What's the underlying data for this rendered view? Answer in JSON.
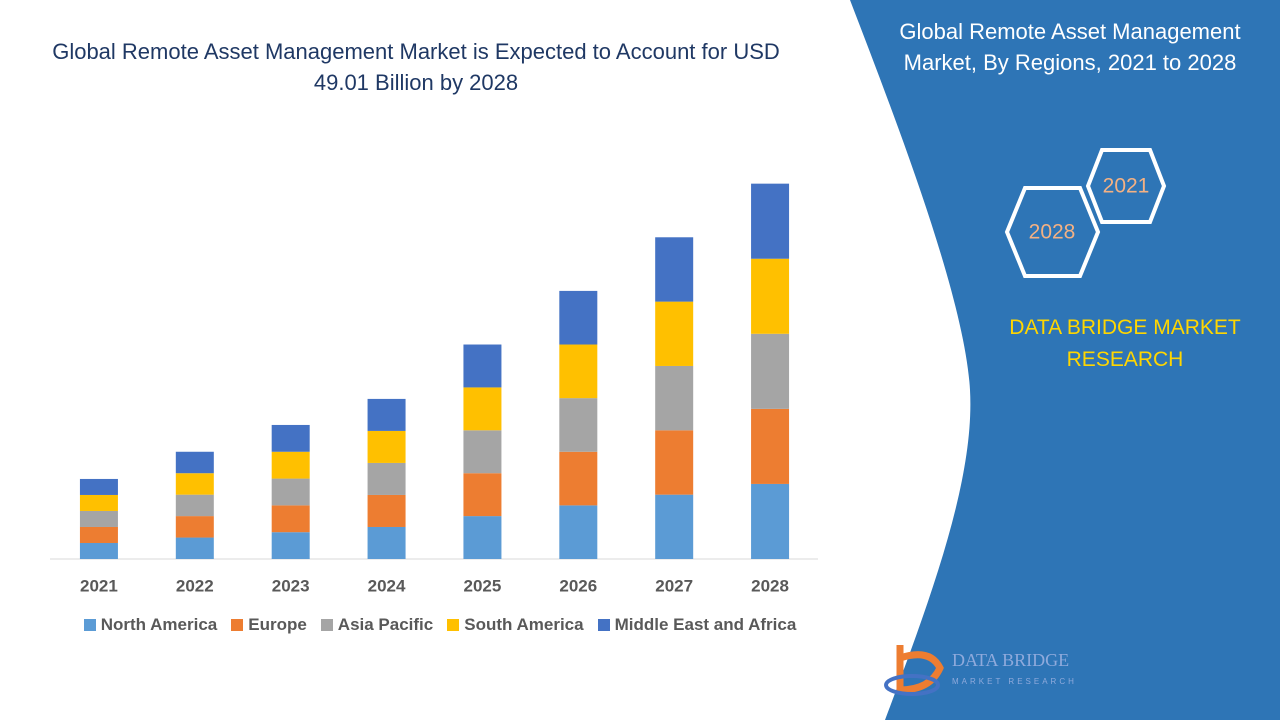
{
  "chart_data": {
    "type": "stacked_bar",
    "title": "Global Remote Asset Management Market is Expected to Account for USD 49.01 Billion by 2028",
    "categories": [
      "2021",
      "2022",
      "2023",
      "2024",
      "2025",
      "2026",
      "2027",
      "2028"
    ],
    "series": [
      {
        "name": "North America",
        "color": "#5b9bd5",
        "values": [
          2.09,
          2.8,
          3.5,
          4.18,
          5.6,
          7.0,
          8.4,
          9.8
        ]
      },
      {
        "name": "Europe",
        "color": "#ed7d31",
        "values": [
          2.09,
          2.8,
          3.5,
          4.18,
          5.6,
          7.0,
          8.4,
          9.8
        ]
      },
      {
        "name": "Asia Pacific",
        "color": "#a5a5a5",
        "values": [
          2.09,
          2.8,
          3.5,
          4.18,
          5.6,
          7.0,
          8.4,
          9.8
        ]
      },
      {
        "name": "South America",
        "color": "#ffc000",
        "values": [
          2.09,
          2.8,
          3.5,
          4.18,
          5.6,
          7.0,
          8.4,
          9.8
        ]
      },
      {
        "name": "Middle East and Africa",
        "color": "#4472c4",
        "values": [
          2.09,
          2.8,
          3.5,
          4.18,
          5.6,
          7.0,
          8.4,
          9.8
        ]
      }
    ],
    "ylim": [
      0,
      50
    ]
  },
  "panel": {
    "title": "Global Remote Asset Management Market, By Regions, 2021 to 2028",
    "hexagons": [
      "2021",
      "2028"
    ],
    "brand": "DATA BRIDGE MARKET RESEARCH",
    "logo": {
      "name": "DATA BRIDGE",
      "tagline": "MARKET RESEARCH"
    }
  }
}
